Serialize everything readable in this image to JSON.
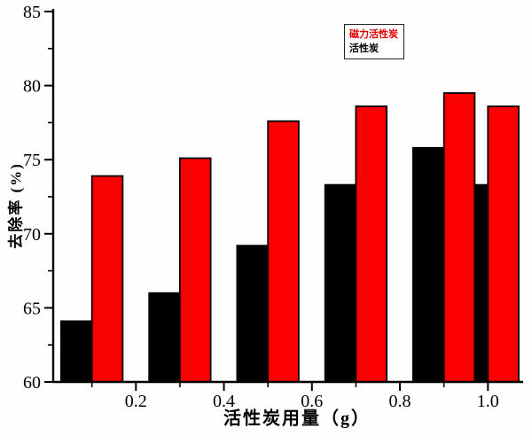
{
  "figure": {
    "background": "#fefefe"
  },
  "chart_data": {
    "type": "bar",
    "title": "",
    "xlabel": "活性炭用量（g）",
    "ylabel": "去除率 (%)",
    "x": [
      0.1,
      0.3,
      0.5,
      0.7,
      0.9,
      1.0
    ],
    "series": [
      {
        "name": "活性炭",
        "color": "#000000",
        "values": [
          64.1,
          66.0,
          69.2,
          73.3,
          75.8,
          73.3
        ]
      },
      {
        "name": "磁力活性炭",
        "color": "#fb0000",
        "values": [
          73.9,
          75.1,
          77.6,
          78.6,
          79.5,
          78.6
        ]
      }
    ],
    "legend": [
      {
        "label": "磁力活性炭",
        "color": "#e00000"
      },
      {
        "label": "活性炭",
        "color": "#000000"
      }
    ],
    "legend_position": "top-right-inside",
    "bar_width": 0.07,
    "bar_border_color": "#000000",
    "xlim": [
      0.012,
      1.08
    ],
    "ylim": [
      60,
      85
    ],
    "x_major_ticks": [
      {
        "value": 0.2,
        "label": "0.2"
      },
      {
        "value": 0.4,
        "label": "0.4"
      },
      {
        "value": 0.6,
        "label": "0.6"
      },
      {
        "value": 0.8,
        "label": "0.8"
      },
      {
        "value": 1.0,
        "label": "1.0"
      }
    ],
    "x_minor_ticks": [
      0.1,
      0.3,
      0.5,
      0.7,
      0.9
    ],
    "y_major_ticks": [
      {
        "value": 60,
        "label": "60"
      },
      {
        "value": 65,
        "label": "65"
      },
      {
        "value": 70,
        "label": "70"
      },
      {
        "value": 75,
        "label": "75"
      },
      {
        "value": 80,
        "label": "80"
      },
      {
        "value": 85,
        "label": "85"
      }
    ],
    "y_minor_ticks": [
      62.5,
      67.5,
      72.5,
      77.5,
      82.5
    ],
    "grid": false,
    "axis_color": "#000000"
  }
}
